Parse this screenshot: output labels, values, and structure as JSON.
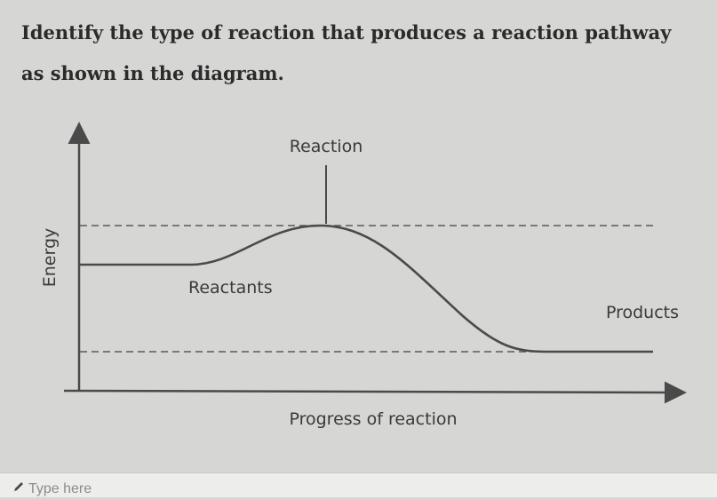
{
  "question": {
    "text": "Identify the type of reaction that produces a reaction pathway as shown in the diagram."
  },
  "diagram": {
    "y_axis_label": "Energy",
    "x_axis_label": "Progress of reaction",
    "peak_label": "Reaction",
    "reactants_label": "Reactants",
    "products_label": "Products"
  },
  "answer": {
    "placeholder": "Type here",
    "icon": "pencil-icon"
  }
}
